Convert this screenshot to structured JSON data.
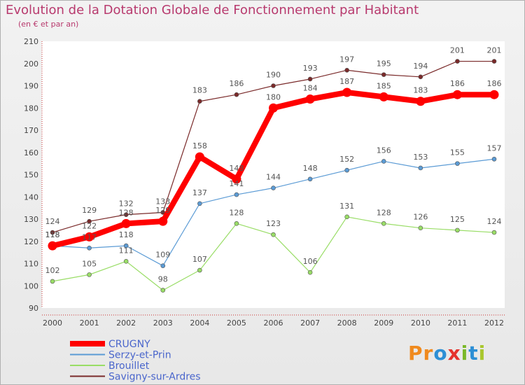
{
  "header": {
    "title": "Evolution de la Dotation Globale de Fonctionnement par Habitant",
    "subtitle": "(en € et par an)"
  },
  "logo": {
    "text": "Proxiti"
  },
  "chart_data": {
    "type": "line",
    "title": "Evolution de la Dotation Globale de Fonctionnement par Habitant",
    "subtitle": "(en € et par an)",
    "x": [
      "2000",
      "2001",
      "2002",
      "2003",
      "2004",
      "2005",
      "2006",
      "2007",
      "2008",
      "2009",
      "2010",
      "2011",
      "2012"
    ],
    "ylim": [
      90,
      210
    ],
    "yticks": [
      90,
      100,
      110,
      120,
      130,
      140,
      150,
      160,
      170,
      180,
      190,
      200,
      210
    ],
    "grid": false,
    "legend_position": "bottom-left",
    "series": [
      {
        "name": "CRUGNY",
        "color": "#ff0000",
        "values": [
          118,
          122,
          128,
          129,
          158,
          148,
          180,
          184,
          187,
          185,
          183,
          186,
          186
        ]
      },
      {
        "name": "Serzy-et-Prin",
        "color": "#5b9bd5",
        "values": [
          118,
          117,
          118,
          109,
          137,
          141,
          144,
          148,
          152,
          156,
          153,
          155,
          157
        ]
      },
      {
        "name": "Brouillet",
        "color": "#99dd66",
        "values": [
          102,
          105,
          111,
          98,
          107,
          128,
          123,
          106,
          131,
          128,
          126,
          125,
          124
        ]
      },
      {
        "name": "Savigny-sur-Ardres",
        "color": "#7a2a2a",
        "values": [
          124,
          129,
          132,
          133,
          183,
          186,
          190,
          193,
          197,
          195,
          194,
          201,
          201
        ]
      }
    ]
  }
}
